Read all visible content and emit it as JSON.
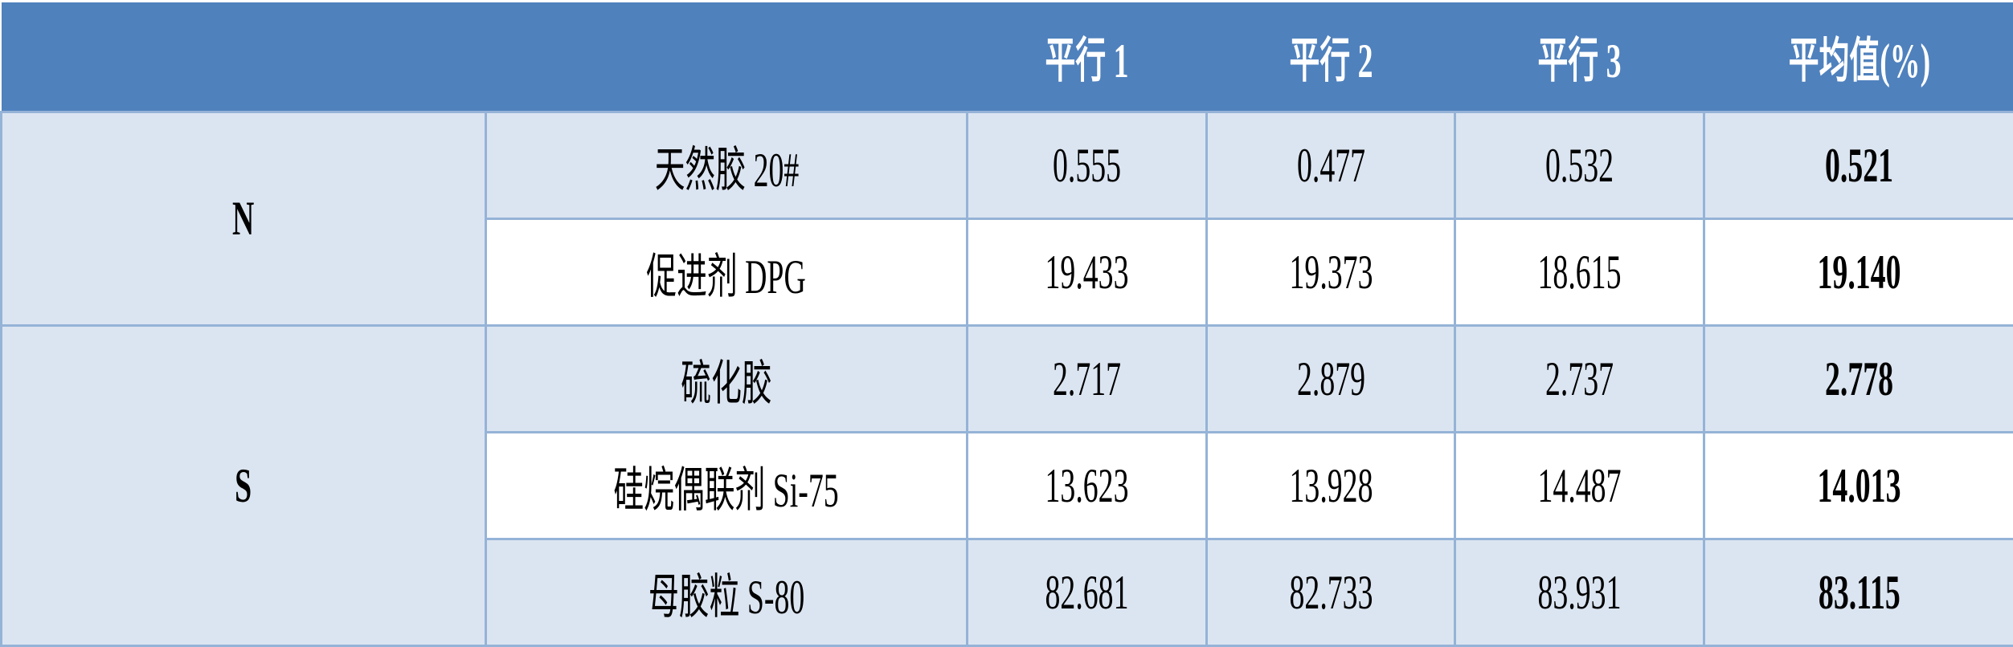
{
  "header": {
    "columns": [
      "",
      "",
      "平行 1",
      "平行 2",
      "平行 3",
      "平均值(%)"
    ]
  },
  "groups": [
    {
      "label": "N",
      "rows": [
        {
          "name": "天然胶 20#",
          "p1": "0.555",
          "p2": "0.477",
          "p3": "0.532",
          "avg": "0.521"
        },
        {
          "name": "促进剂 DPG",
          "p1": "19.433",
          "p2": "19.373",
          "p3": "18.615",
          "avg": "19.140"
        }
      ]
    },
    {
      "label": "S",
      "rows": [
        {
          "name": "硫化胶",
          "p1": "2.717",
          "p2": "2.879",
          "p3": "2.737",
          "avg": "2.778"
        },
        {
          "name": "硅烷偶联剂 Si-75",
          "p1": "13.623",
          "p2": "13.928",
          "p3": "14.487",
          "avg": "14.013"
        },
        {
          "name": "母胶粒 S-80",
          "p1": "82.681",
          "p2": "82.733",
          "p3": "83.931",
          "avg": "83.115"
        }
      ]
    }
  ],
  "colors": {
    "header_bg": "#4f81bd",
    "shade_bg": "#dbe5f1",
    "border": "#95b3d7"
  }
}
